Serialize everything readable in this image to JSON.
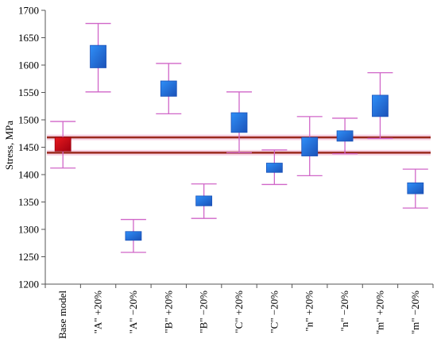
{
  "chart_data": {
    "type": "box",
    "ylabel": "Stress, MPa",
    "ylim": [
      1200,
      1700
    ],
    "yticks": [
      1200,
      1250,
      1300,
      1350,
      1400,
      1450,
      1500,
      1550,
      1600,
      1650,
      1700
    ],
    "categories": [
      "Base model",
      "\"A\" +20%",
      "\"A\" −20%",
      "\"B\" +20%",
      "\"B\" −20%",
      "\"C\" +20%",
      "\"C\" −20%",
      "\"n\" +20%",
      "\"n\" −20%",
      "\"m\" +20%",
      "\"m\" −20%"
    ],
    "boxes": [
      {
        "whisker_low": 1412,
        "q1": 1443,
        "median": 1455,
        "q3": 1468,
        "whisker_high": 1497
      },
      {
        "whisker_low": 1551,
        "q1": 1595,
        "median": 1612,
        "q3": 1636,
        "whisker_high": 1676
      },
      {
        "whisker_low": 1258,
        "q1": 1280,
        "median": 1287,
        "q3": 1296,
        "whisker_high": 1318
      },
      {
        "whisker_low": 1511,
        "q1": 1543,
        "median": 1556,
        "q3": 1571,
        "whisker_high": 1603
      },
      {
        "whisker_low": 1320,
        "q1": 1343,
        "median": 1351,
        "q3": 1361,
        "whisker_high": 1383
      },
      {
        "whisker_low": 1440,
        "q1": 1477,
        "median": 1495,
        "q3": 1513,
        "whisker_high": 1551
      },
      {
        "whisker_low": 1382,
        "q1": 1404,
        "median": 1413,
        "q3": 1421,
        "whisker_high": 1445
      },
      {
        "whisker_low": 1398,
        "q1": 1434,
        "median": 1453,
        "q3": 1468,
        "whisker_high": 1506
      },
      {
        "whisker_low": 1438,
        "q1": 1461,
        "median": 1471,
        "q3": 1480,
        "whisker_high": 1503
      },
      {
        "whisker_low": 1466,
        "q1": 1506,
        "median": 1525,
        "q3": 1545,
        "whisker_high": 1586
      },
      {
        "whisker_low": 1339,
        "q1": 1365,
        "median": 1375,
        "q3": 1385,
        "whisker_high": 1410
      }
    ],
    "reference_lines": [
      1468,
      1440
    ],
    "colors": {
      "base_box": "#e8191e",
      "base_box_dark": "#a00010",
      "box": "#2f8ff8",
      "box_dark": "#1b52b8",
      "whisker": "#d066c8",
      "reference_line": "#9b2a1e",
      "reference_halo": "#f2b6d4",
      "axis": "#555555"
    }
  }
}
